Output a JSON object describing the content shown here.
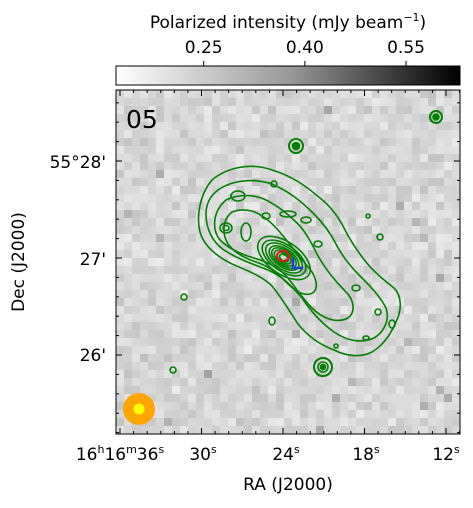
{
  "panel_label": "05",
  "colorbar": {
    "label": "Polarized intensity (mJy beam",
    "label_exp": "−1",
    "label_close": ")",
    "ticks": [
      "0.25",
      "0.40",
      "0.55"
    ],
    "tick_values": [
      0.25,
      0.4,
      0.55
    ],
    "range": [
      0.12,
      0.63
    ],
    "colormap": "gray_r"
  },
  "xaxis": {
    "label": "RA (J2000)",
    "ticks": [
      {
        "h": "16",
        "hs": "h",
        "m": "16",
        "ms": "m",
        "s": "36",
        "ss": "s"
      },
      {
        "s": "30",
        "ss": "s"
      },
      {
        "s": "24",
        "ss": "s"
      },
      {
        "s": "18",
        "ss": "s"
      },
      {
        "s": "12",
        "ss": "s"
      }
    ],
    "seconds": [
      36,
      30,
      24,
      18,
      12
    ]
  },
  "yaxis": {
    "label": "Dec (J2000)",
    "ticks": [
      "55°28'",
      "27'",
      "26'"
    ],
    "arcmin": [
      28,
      27,
      26
    ]
  },
  "colors": {
    "contour": "#008000",
    "red_marker": "#e41a1c",
    "blue_marker": "#1f3fd6",
    "beam_outer": "#ffa500",
    "beam_inner": "#ffff00"
  },
  "chart_data": {
    "type": "heatmap",
    "background": "polarized intensity map (grayscale, noise-dominated)",
    "overlay": "total intensity contours (green)",
    "markers": [
      "red ellipse at core",
      "blue bar at core"
    ],
    "beam": "filled circle, lower-left"
  }
}
